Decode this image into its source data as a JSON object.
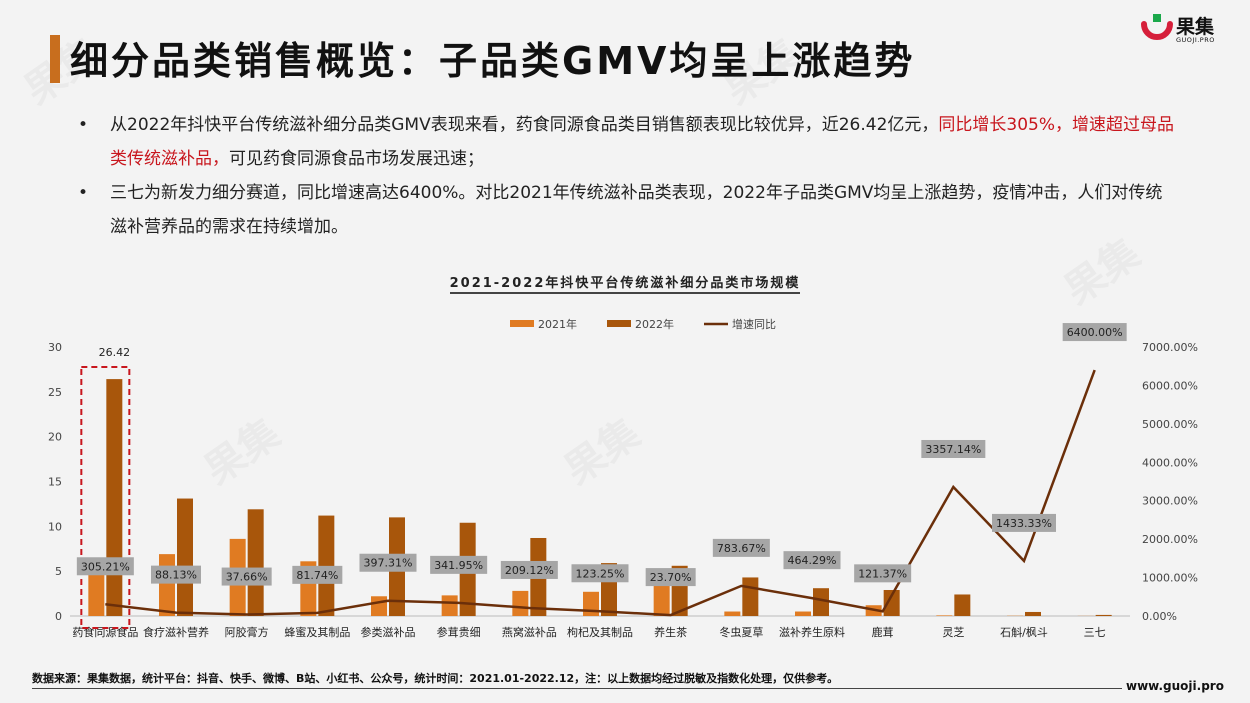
{
  "header": {
    "title": "细分品类销售概览：子品类GMV均呈上涨趋势",
    "logo_text": "果集",
    "logo_sub": "GUOJI.PRO"
  },
  "bullets": [
    {
      "text_a": "从2022年抖快平台传统滋补细分品类GMV表现来看，药食同源食品类目销售额表现比较优异，近26.42亿元，",
      "text_red": "同比增长305%，增速超过母品类传统滋补品，",
      "text_b": "可见药食同源食品市场发展迅速；"
    },
    {
      "text_a": "三七为新发力细分赛道，同比增速高达6400%。对比2021年传统滋补品类表现，2022年子品类GMV均呈上涨趋势，疫情冲击，人们对传统滋补营养品的需求在持续增加。"
    }
  ],
  "footer": {
    "source": "数据来源：果集数据，统计平台：抖音、快手、微博、B站、小红书、公众号，统计时间：2021.01-2022.12，注：以上数据均经过脱敏及指数化处理，仅供参考。",
    "url": "www.guoji.pro"
  },
  "colors": {
    "bar2021": "#e07b22",
    "bar2022": "#a8560b",
    "line": "#6b2f0a",
    "accent": "#c86e1e",
    "highlight": "#c8161d"
  },
  "chart_data": {
    "type": "bar",
    "title": "2021-2022年抖快平台传统滋补细分品类市场规模",
    "categories": [
      "药食同源食品",
      "食疗滋补营养",
      "阿胶膏方",
      "蜂蜜及其制品",
      "参类滋补品",
      "参茸贵细",
      "燕窝滋补品",
      "枸杞及其制品",
      "养生茶",
      "冬虫夏草",
      "滋补养生原料",
      "鹿茸",
      "灵芝",
      "石斛/枫斗",
      "三七"
    ],
    "series": [
      {
        "name": "2021年",
        "type": "bar",
        "axis": "left",
        "values": [
          6.5,
          6.9,
          8.6,
          6.1,
          2.2,
          2.3,
          2.8,
          2.7,
          4.6,
          0.5,
          0.5,
          1.2,
          0.07,
          0.03,
          0.015
        ]
      },
      {
        "name": "2022年",
        "type": "bar",
        "axis": "left",
        "values": [
          26.42,
          13.1,
          11.9,
          11.2,
          11.0,
          10.4,
          8.7,
          5.9,
          5.6,
          4.3,
          3.1,
          2.9,
          2.4,
          0.45,
          0.12
        ]
      },
      {
        "name": "增速同比",
        "type": "line",
        "axis": "right",
        "values": [
          305.21,
          88.13,
          37.66,
          81.74,
          397.31,
          341.95,
          209.12,
          123.25,
          23.7,
          783.67,
          464.29,
          121.37,
          3357.14,
          1433.33,
          6400.0
        ]
      }
    ],
    "data_labels": [
      "305.21%",
      "88.13%",
      "37.66%",
      "81.74%",
      "397.31%",
      "341.95%",
      "209.12%",
      "123.25%",
      "23.70%",
      "783.67%",
      "464.29%",
      "121.37%",
      "3357.14%",
      "1433.33%",
      "6400.00%"
    ],
    "top_label": "26.42",
    "ylim": [
      0,
      30
    ],
    "y_ticks": [
      "0",
      "5",
      "10",
      "15",
      "20",
      "25",
      "30"
    ],
    "y2lim": [
      0,
      7000
    ],
    "y2_ticks": [
      "0.00%",
      "1000.00%",
      "2000.00%",
      "3000.00%",
      "4000.00%",
      "5000.00%",
      "6000.00%",
      "7000.00%"
    ],
    "legend_position": "top-center",
    "grid": false
  }
}
